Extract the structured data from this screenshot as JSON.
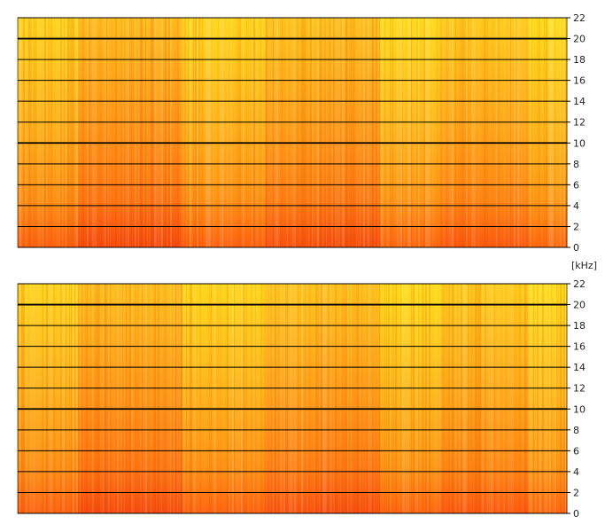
{
  "chart_data": {
    "type": "heatmap",
    "unit": "[kHz]",
    "ylim": [
      0,
      22
    ],
    "yticks": [
      0,
      2,
      4,
      6,
      8,
      10,
      12,
      14,
      16,
      18,
      20,
      22
    ],
    "grid": true,
    "colormap": [
      "#fff21a",
      "#ffd21e",
      "#ffb21c",
      "#ff8a14",
      "#ff6010",
      "#e8300c"
    ],
    "channels": [
      {
        "segments": [
          {
            "from": 0.0,
            "to": 0.11,
            "level": 0.3
          },
          {
            "from": 0.11,
            "to": 0.3,
            "level": 0.62
          },
          {
            "from": 0.3,
            "to": 0.45,
            "level": 0.28
          },
          {
            "from": 0.45,
            "to": 0.55,
            "level": 0.52
          },
          {
            "from": 0.55,
            "to": 0.66,
            "level": 0.58
          },
          {
            "from": 0.66,
            "to": 0.77,
            "level": 0.22
          },
          {
            "from": 0.77,
            "to": 0.93,
            "level": 0.42
          },
          {
            "from": 0.93,
            "to": 1.0,
            "level": 0.18
          }
        ]
      },
      {
        "segments": [
          {
            "from": 0.0,
            "to": 0.11,
            "level": 0.3
          },
          {
            "from": 0.11,
            "to": 0.3,
            "level": 0.6
          },
          {
            "from": 0.3,
            "to": 0.45,
            "level": 0.26
          },
          {
            "from": 0.45,
            "to": 0.55,
            "level": 0.5
          },
          {
            "from": 0.55,
            "to": 0.66,
            "level": 0.56
          },
          {
            "from": 0.66,
            "to": 0.77,
            "level": 0.2
          },
          {
            "from": 0.77,
            "to": 0.93,
            "level": 0.4
          },
          {
            "from": 0.93,
            "to": 1.0,
            "level": 0.18
          }
        ]
      }
    ]
  }
}
